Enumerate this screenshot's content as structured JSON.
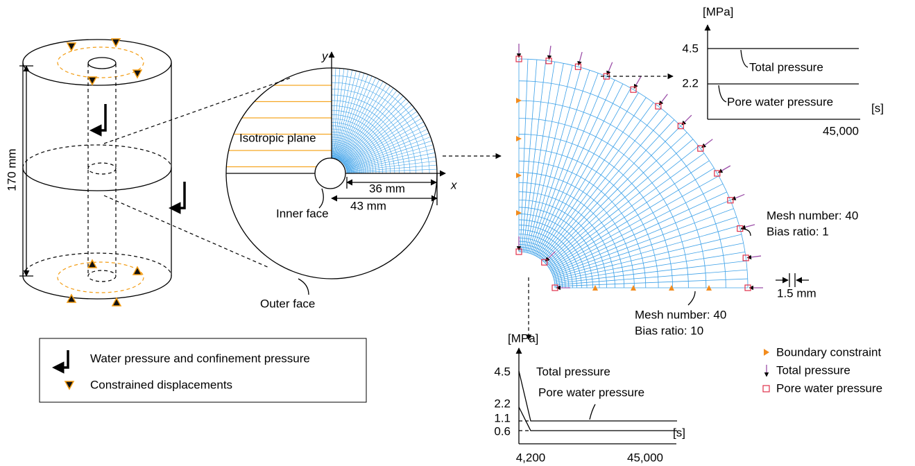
{
  "cylinder": {
    "height_label": "170 mm"
  },
  "cross_section": {
    "y_axis": "y",
    "x_axis": "x",
    "isotropic_plane": "Isotropic plane",
    "inner_radius_label": "36 mm",
    "outer_radius_label": "43 mm",
    "inner_face": "Inner face",
    "outer_face": "Outer face"
  },
  "mesh": {
    "outer_mesh_number": "Mesh number: 40",
    "outer_bias_ratio": "Bias ratio: 1",
    "thickness_label": "1.5 mm",
    "radial_mesh_number": "Mesh number: 40",
    "radial_bias_ratio": "Bias ratio: 10"
  },
  "top_plot": {
    "y_unit": "[MPa]",
    "x_unit": "[s]",
    "yticks": [
      "4.5",
      "2.2"
    ],
    "xticks": [
      "45,000"
    ],
    "total_pressure": "Total pressure",
    "pore_water_pressure": "Pore water pressure"
  },
  "bottom_plot": {
    "y_unit": "[MPa]",
    "x_unit": "[s]",
    "yticks": [
      "4.5",
      "2.2",
      "1.1",
      "0.6"
    ],
    "xticks": [
      "4,200",
      "45,000"
    ],
    "total_pressure": "Total pressure",
    "pore_water_pressure": "Pore water pressure"
  },
  "legend_left": {
    "items": [
      "Water pressure and confinement pressure",
      "Constrained displacements"
    ]
  },
  "legend_right": {
    "items": [
      "Boundary constraint",
      "Total pressure",
      "Pore water pressure"
    ]
  }
}
